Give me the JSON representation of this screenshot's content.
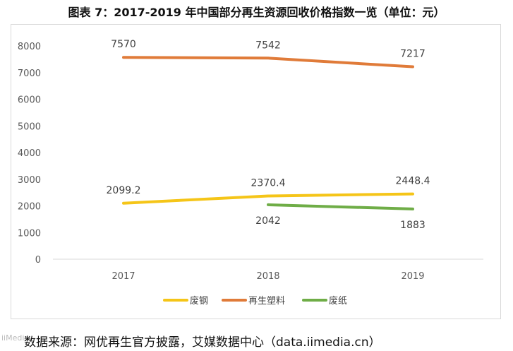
{
  "title": "图表 7：2017-2019 年中国部分再生资源回收价格指数一览（单位：元）",
  "source": "数据来源：网优再生官方披露，艾媒数据中心（data.iimedia.cn）",
  "watermark": "iiMedia",
  "colors": {
    "series_steel": "#F5C518",
    "series_plastic": "#E07B39",
    "series_paper": "#6FAD47",
    "axis": "#d9d9d9",
    "tick_text": "#595959"
  },
  "chart_data": {
    "type": "line",
    "categories": [
      "2017",
      "2018",
      "2019"
    ],
    "ylim": [
      0,
      8000
    ],
    "yticks": [
      "0",
      "1000",
      "2000",
      "3000",
      "4000",
      "5000",
      "6000",
      "7000",
      "8000"
    ],
    "grid": false,
    "legend_position": "bottom",
    "series": [
      {
        "name": "废钢",
        "values": [
          2099.2,
          2370.4,
          2448.4
        ],
        "labels": [
          "2099.2",
          "2370.4",
          "2448.4"
        ],
        "label_position": "above"
      },
      {
        "name": "再生塑料",
        "values": [
          7570,
          7542,
          7217
        ],
        "labels": [
          "7570",
          "7542",
          "7217"
        ],
        "label_position": "above"
      },
      {
        "name": "废纸",
        "values": [
          null,
          2042,
          1883
        ],
        "labels": [
          null,
          "2042",
          "1883"
        ],
        "label_position": "below"
      }
    ]
  }
}
